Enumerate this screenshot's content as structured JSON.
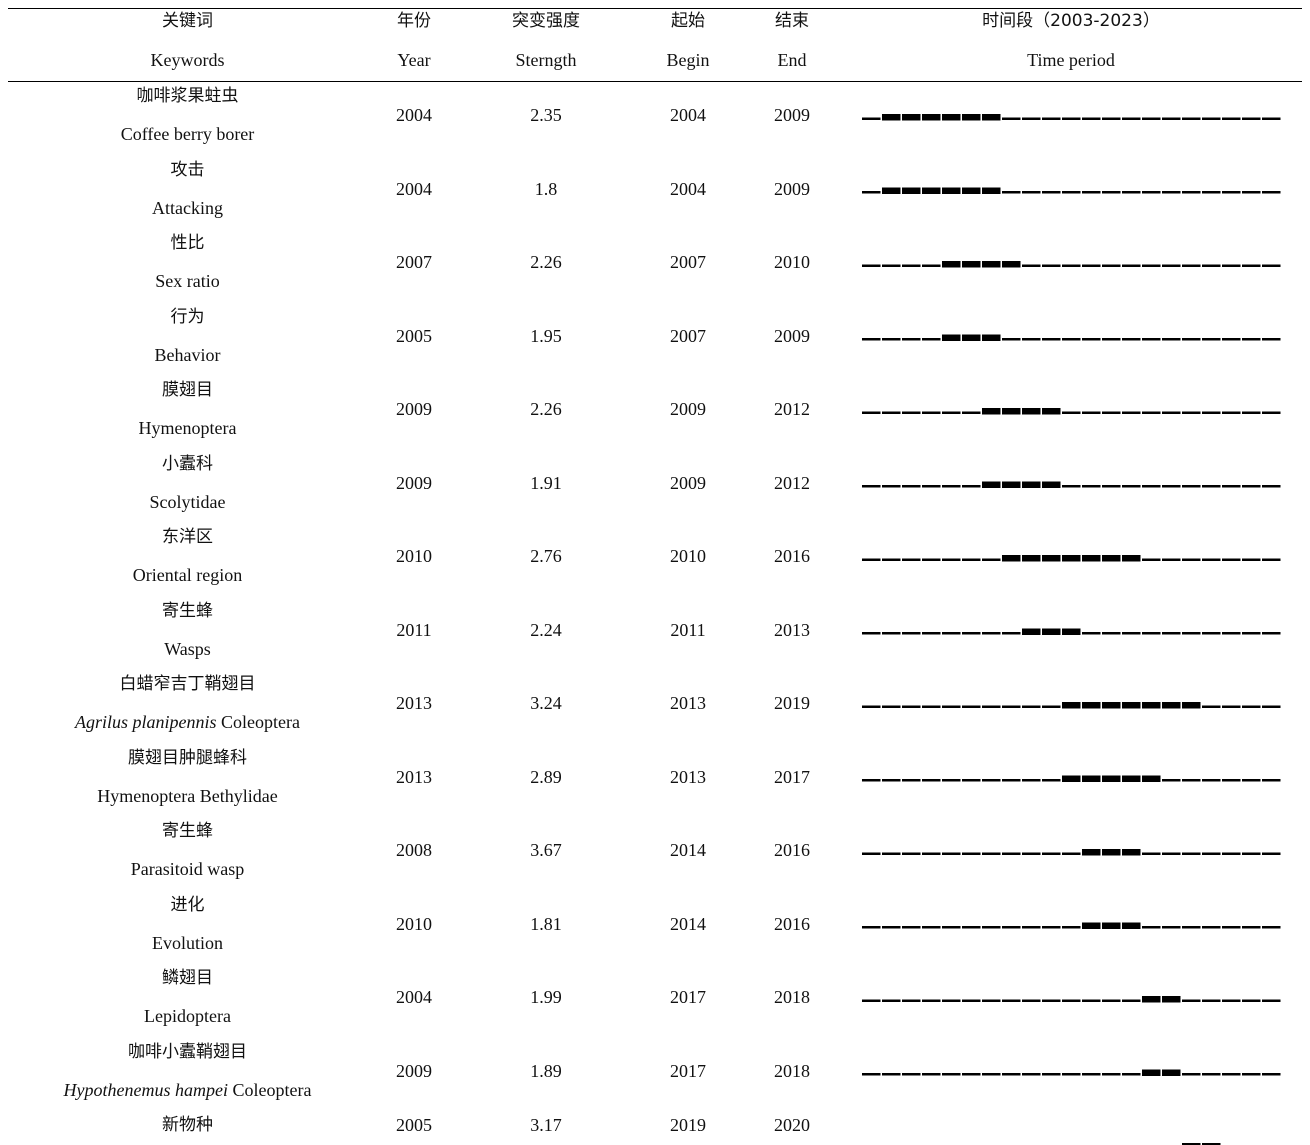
{
  "headers": {
    "keyword_zh": "关键词",
    "keyword_en": "Keywords",
    "year_zh": "年份",
    "year_en": "Year",
    "strength_zh": "突变强度",
    "strength_en": "Sterngth",
    "begin_zh": "起始",
    "begin_en": "Begin",
    "end_zh": "结束",
    "end_en": "End",
    "period_zh": "时间段（2003-2023）",
    "period_en": "Time period"
  },
  "timeline": {
    "start_year": 2003,
    "end_year": 2023
  },
  "rows": [
    {
      "zh": "咖啡浆果蛀虫",
      "en": "Coffee berry borer",
      "en_italic": "",
      "year": "2004",
      "strength": "2.35",
      "begin": "2004",
      "end": "2009"
    },
    {
      "zh": "攻击",
      "en": "Attacking",
      "en_italic": "",
      "year": "2004",
      "strength": "1.8",
      "begin": "2004",
      "end": "2009"
    },
    {
      "zh": "性比",
      "en": "Sex ratio",
      "en_italic": "",
      "year": "2007",
      "strength": "2.26",
      "begin": "2007",
      "end": "2010"
    },
    {
      "zh": "行为",
      "en": "Behavior",
      "en_italic": "",
      "year": "2005",
      "strength": "1.95",
      "begin": "2007",
      "end": "2009"
    },
    {
      "zh": "膜翅目",
      "en": "Hymenoptera",
      "en_italic": "",
      "year": "2009",
      "strength": "2.26",
      "begin": "2009",
      "end": "2012"
    },
    {
      "zh": "小蠹科",
      "en": "Scolytidae",
      "en_italic": "",
      "year": "2009",
      "strength": "1.91",
      "begin": "2009",
      "end": "2012"
    },
    {
      "zh": "东洋区",
      "en": "Oriental region",
      "en_italic": "",
      "year": "2010",
      "strength": "2.76",
      "begin": "2010",
      "end": "2016"
    },
    {
      "zh": "寄生蜂",
      "en": "Wasps",
      "en_italic": "",
      "year": "2011",
      "strength": "2.24",
      "begin": "2011",
      "end": "2013"
    },
    {
      "zh": "白蜡窄吉丁鞘翅目",
      "en": " Coleoptera",
      "en_italic": "Agrilus planipennis",
      "year": "2013",
      "strength": "3.24",
      "begin": "2013",
      "end": "2019"
    },
    {
      "zh": "膜翅目肿腿蜂科",
      "en": "Hymenoptera Bethylidae",
      "en_italic": "",
      "year": "2013",
      "strength": "2.89",
      "begin": "2013",
      "end": "2017"
    },
    {
      "zh": "寄生蜂",
      "en": "Parasitoid wasp",
      "en_italic": "",
      "year": "2008",
      "strength": "3.67",
      "begin": "2014",
      "end": "2016"
    },
    {
      "zh": "进化",
      "en": "Evolution",
      "en_italic": "",
      "year": "2010",
      "strength": "1.81",
      "begin": "2014",
      "end": "2016"
    },
    {
      "zh": "鳞翅目",
      "en": "Lepidoptera",
      "en_italic": "",
      "year": "2004",
      "strength": "1.99",
      "begin": "2017",
      "end": "2018"
    },
    {
      "zh": "咖啡小蠹鞘翅目",
      "en": " Coleoptera",
      "en_italic": "Hypothenemus hampei",
      "year": "2009",
      "strength": "1.89",
      "begin": "2017",
      "end": "2018"
    },
    {
      "zh": "新物种",
      "en": "",
      "en_italic": "",
      "year": "2005",
      "strength": "3.17",
      "begin": "2019",
      "end": "2020"
    }
  ]
}
